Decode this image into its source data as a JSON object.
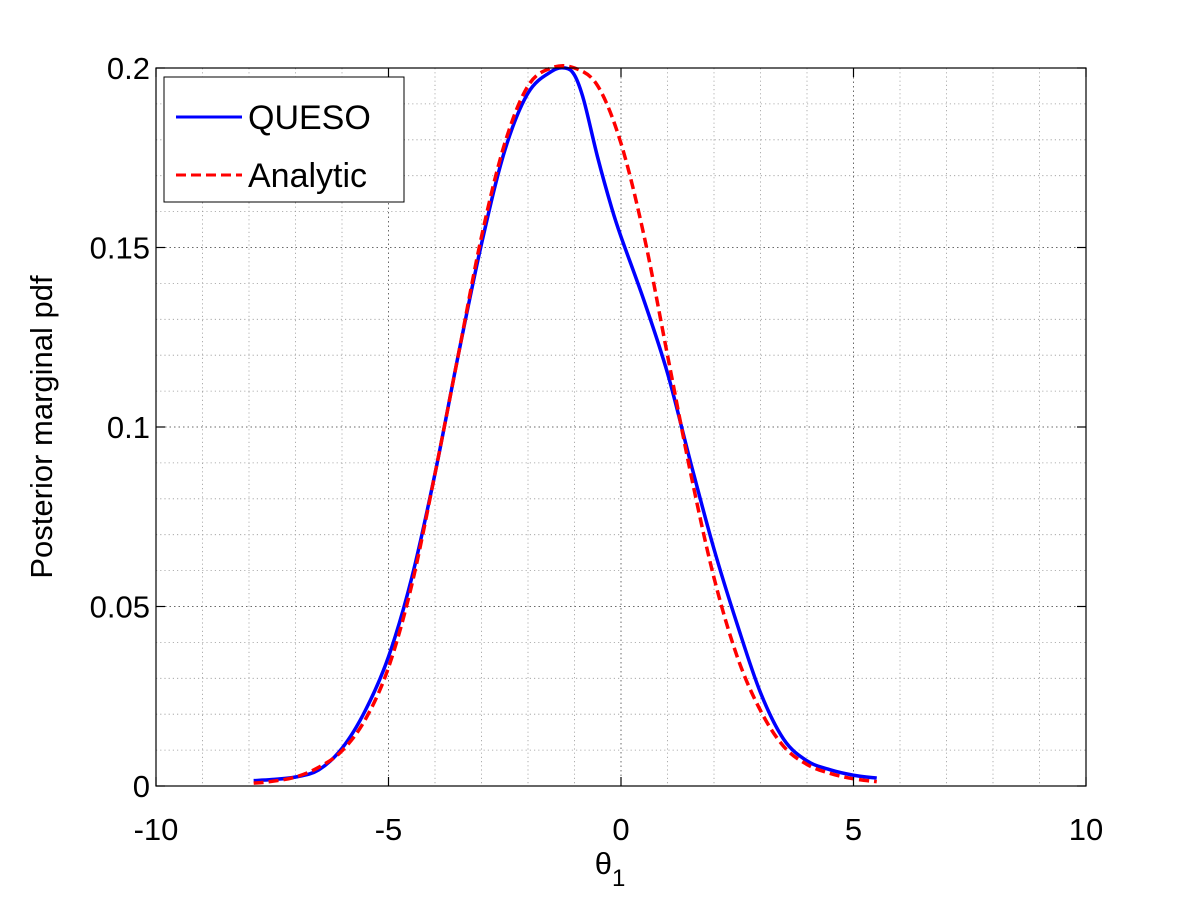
{
  "chart_data": {
    "type": "line",
    "title": "",
    "xlabel": "θ",
    "xlabel_subscript": "1",
    "ylabel": "Posterior marginal pdf",
    "xlim": [
      -10,
      10
    ],
    "ylim": [
      0,
      0.2
    ],
    "xticks": [
      -10,
      -5,
      0,
      5,
      10
    ],
    "xtick_labels": [
      "-10",
      "-5",
      "0",
      "5",
      "10"
    ],
    "yticks": [
      0,
      0.05,
      0.1,
      0.15,
      0.2
    ],
    "ytick_labels": [
      "0",
      "0.05",
      "0.1",
      "0.15",
      "0.2"
    ],
    "grid": "major and minor, dotted",
    "legend_position": "top-left",
    "series": [
      {
        "name": "QUESO",
        "color": "#0000ff",
        "line_style": "solid",
        "x": [
          -7.9,
          -7.5,
          -7.0,
          -6.5,
          -6.0,
          -5.5,
          -5.0,
          -4.5,
          -4.0,
          -3.5,
          -3.0,
          -2.5,
          -2.0,
          -1.5,
          -1.2,
          -1.0,
          -0.8,
          -0.5,
          -0.2,
          0.0,
          0.5,
          1.0,
          1.5,
          2.0,
          2.5,
          3.0,
          3.5,
          4.0,
          4.5,
          5.0,
          5.5
        ],
        "y": [
          0.0015,
          0.0018,
          0.0025,
          0.0045,
          0.0105,
          0.021,
          0.036,
          0.058,
          0.087,
          0.12,
          0.151,
          0.177,
          0.193,
          0.199,
          0.2,
          0.198,
          0.191,
          0.175,
          0.161,
          0.153,
          0.135,
          0.115,
          0.09,
          0.066,
          0.045,
          0.026,
          0.013,
          0.007,
          0.0045,
          0.003,
          0.0022
        ]
      },
      {
        "name": "Analytic",
        "color": "#ff0000",
        "line_style": "dashed",
        "x": [
          -7.9,
          -7.5,
          -7.0,
          -6.5,
          -6.0,
          -5.5,
          -5.0,
          -4.5,
          -4.0,
          -3.5,
          -3.0,
          -2.5,
          -2.0,
          -1.5,
          -1.0,
          -0.5,
          0.0,
          0.5,
          1.0,
          1.5,
          2.0,
          2.5,
          3.0,
          3.5,
          4.0,
          4.5,
          5.0,
          5.5
        ],
        "y": [
          0.0008,
          0.0013,
          0.0025,
          0.0052,
          0.0098,
          0.0185,
          0.033,
          0.056,
          0.087,
          0.12,
          0.153,
          0.179,
          0.195,
          0.2,
          0.2,
          0.195,
          0.179,
          0.153,
          0.12,
          0.087,
          0.058,
          0.036,
          0.021,
          0.011,
          0.006,
          0.0035,
          0.002,
          0.0012
        ]
      }
    ]
  }
}
